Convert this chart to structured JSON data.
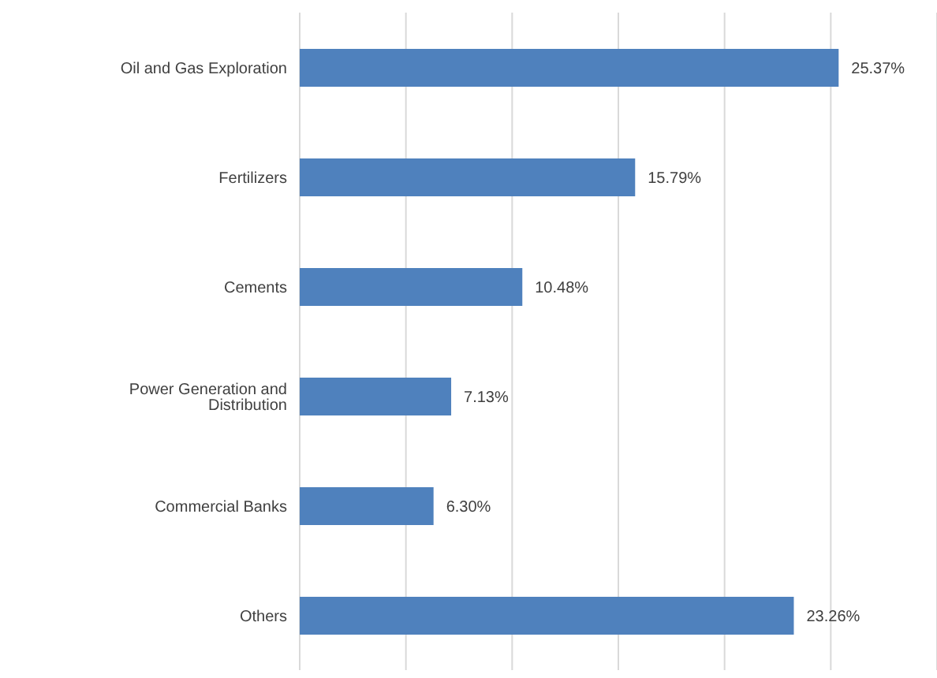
{
  "chart_data": {
    "type": "bar",
    "orientation": "horizontal",
    "categories": [
      "Oil and Gas Exploration",
      "Fertilizers",
      "Cements",
      "Power Generation and Distribution",
      "Commercial Banks",
      "Others"
    ],
    "values": [
      25.37,
      15.79,
      10.48,
      7.13,
      6.3,
      23.26
    ],
    "value_labels": [
      "25.37%",
      "15.79%",
      "10.48%",
      "7.13%",
      "6.30%",
      "23.26%"
    ],
    "color": "#4f81bd",
    "tick_labels": "y",
    "grid": "x"
  }
}
